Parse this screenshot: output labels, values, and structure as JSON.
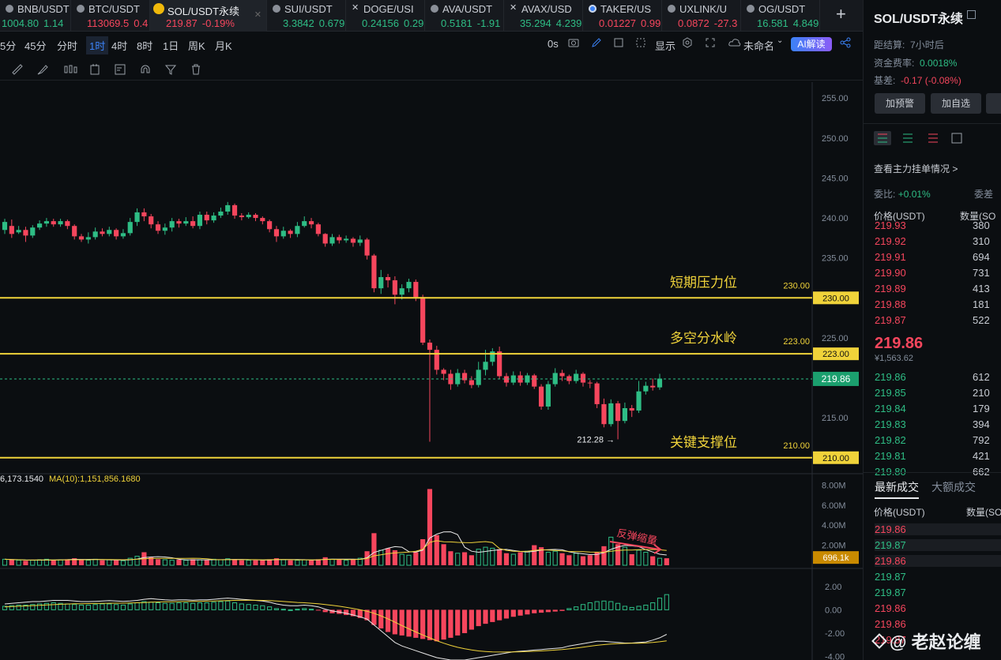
{
  "colors": {
    "up": "#2ebd85",
    "down": "#f6465d",
    "level": "#f0d33a",
    "bg": "#0b0e11",
    "ma": "#f0d33a",
    "ma2": "#e8e8e8",
    "accent": "#3b82f6"
  },
  "tabs": [
    {
      "symbol": "BNB/USDT",
      "price": "1004.80",
      "change": "1.14",
      "dir": "up",
      "icon": "bnb-coin-icon"
    },
    {
      "symbol": "BTC/USDT",
      "price": "113069.5",
      "change": "0.4",
      "dir": "down",
      "icon": "btc-coin-icon"
    },
    {
      "symbol": "SOL/USDT永续",
      "price": "219.87",
      "change": "-0.19%",
      "dir": "down",
      "icon": "binance-logo-icon",
      "active": true
    },
    {
      "symbol": "SUI/USDT",
      "price": "3.3842",
      "change": "0.679",
      "dir": "up",
      "icon": "sui-coin-icon"
    },
    {
      "symbol": "DOGE/USI",
      "price": "0.24156",
      "change": "0.29",
      "dir": "up",
      "icon": "x-icon"
    },
    {
      "symbol": "AVA/USDT",
      "price": "0.5181",
      "change": "-1.91",
      "dir": "up",
      "icon": "ava-coin-icon"
    },
    {
      "symbol": "AVAX/USD",
      "price": "35.294",
      "change": "4.239",
      "dir": "up",
      "icon": "x-icon"
    },
    {
      "symbol": "TAKER/US",
      "price": "0.01227",
      "change": "0.99",
      "dir": "down",
      "icon": "taker-coin-icon"
    },
    {
      "symbol": "UXLINK/U",
      "price": "0.0872",
      "change": "-27.3",
      "dir": "down",
      "icon": "uxlink-coin-icon"
    },
    {
      "symbol": "OG/USDT",
      "price": "16.581",
      "change": "4.849",
      "dir": "up",
      "icon": "og-coin-icon"
    }
  ],
  "timeframes": [
    "5分",
    "45分",
    "分时",
    "1时",
    "4时",
    "8时",
    "1日",
    "周K",
    "月K"
  ],
  "selected_timeframe": "1时",
  "toolbar": {
    "countdown": "0s",
    "display": "显示",
    "layout_name": "未命名",
    "ai_label": "AI解读"
  },
  "chart_data": {
    "type": "candlestick",
    "ylim": [
      208,
      257
    ],
    "yticks": [
      "255.00",
      "250.00",
      "245.00",
      "240.00",
      "235.00",
      "230.00",
      "225.00",
      "220.00",
      "215.00",
      "210.00"
    ],
    "levels": [
      {
        "price": 230,
        "label": "短期压力位",
        "tag": "230.00",
        "value_label": "230.00"
      },
      {
        "price": 223,
        "label": "多空分水岭",
        "tag": "223.00",
        "value_label": "223.00"
      },
      {
        "price": 210,
        "label": "关键支撑位",
        "tag": "210.00",
        "value_label": "210.00"
      }
    ],
    "current_price": "219.86",
    "low_marker": {
      "value": 212.28,
      "label": "212.28 →"
    },
    "candles": [
      [
        238.5,
        239.5,
        238.0,
        239.9
      ],
      [
        239.0,
        238.0,
        237.5,
        239.8
      ],
      [
        238.2,
        238.5,
        238.0,
        239.0
      ],
      [
        238.5,
        237.8,
        237.0,
        238.9
      ],
      [
        237.8,
        238.8,
        237.5,
        239.1
      ],
      [
        238.8,
        239.3,
        238.5,
        239.7
      ],
      [
        239.3,
        239.6,
        238.9,
        240.0
      ],
      [
        239.6,
        239.2,
        238.9,
        239.9
      ],
      [
        239.2,
        239.6,
        238.9,
        239.9
      ],
      [
        239.6,
        239.0,
        238.6,
        239.8
      ],
      [
        239.0,
        237.7,
        237.3,
        239.2
      ],
      [
        237.7,
        237.3,
        237.0,
        238.0
      ],
      [
        237.3,
        237.6,
        236.8,
        238.2
      ],
      [
        237.6,
        238.3,
        237.3,
        238.8
      ],
      [
        238.3,
        238.0,
        237.7,
        238.7
      ],
      [
        238.0,
        238.5,
        237.7,
        238.9
      ],
      [
        238.5,
        237.7,
        237.3,
        238.7
      ],
      [
        237.7,
        238.1,
        237.4,
        238.6
      ],
      [
        238.1,
        239.5,
        237.8,
        240.0
      ],
      [
        239.5,
        240.7,
        239.0,
        241.2
      ],
      [
        240.7,
        240.2,
        239.6,
        241.2
      ],
      [
        240.2,
        239.2,
        238.7,
        240.5
      ],
      [
        239.2,
        238.4,
        238.0,
        239.6
      ],
      [
        238.4,
        238.8,
        237.9,
        239.3
      ],
      [
        238.8,
        239.6,
        238.3,
        240.0
      ],
      [
        239.6,
        239.3,
        238.8,
        239.9
      ],
      [
        239.3,
        239.6,
        239.0,
        240.1
      ],
      [
        239.6,
        239.0,
        238.7,
        240.2
      ],
      [
        239.0,
        240.4,
        238.6,
        240.8
      ],
      [
        240.4,
        239.7,
        239.2,
        240.8
      ],
      [
        239.7,
        240.3,
        239.4,
        240.7
      ],
      [
        240.3,
        240.8,
        240.0,
        241.3
      ],
      [
        240.8,
        241.6,
        240.4,
        242.0
      ],
      [
        241.6,
        240.3,
        239.9,
        241.8
      ],
      [
        240.3,
        240.1,
        239.7,
        240.6
      ],
      [
        240.1,
        240.4,
        239.9,
        240.7
      ],
      [
        240.4,
        240.0,
        239.6,
        240.6
      ],
      [
        240.0,
        239.6,
        239.2,
        240.2
      ],
      [
        239.6,
        238.6,
        238.2,
        239.8
      ],
      [
        238.6,
        237.7,
        237.0,
        239.0
      ],
      [
        237.7,
        238.4,
        237.4,
        238.9
      ],
      [
        238.4,
        238.0,
        237.5,
        238.6
      ],
      [
        238.0,
        239.0,
        237.6,
        239.5
      ],
      [
        239.0,
        239.6,
        238.8,
        240.2
      ],
      [
        239.6,
        239.2,
        238.7,
        240.0
      ],
      [
        239.2,
        238.0,
        237.7,
        239.4
      ],
      [
        238.0,
        236.8,
        236.4,
        238.1
      ],
      [
        236.8,
        237.6,
        236.5,
        238.0
      ],
      [
        237.6,
        237.2,
        236.8,
        237.9
      ],
      [
        237.2,
        237.4,
        236.9,
        237.8
      ],
      [
        237.4,
        236.9,
        236.4,
        237.6
      ],
      [
        236.9,
        237.3,
        236.5,
        237.8
      ],
      [
        237.3,
        235.3,
        234.8,
        237.5
      ],
      [
        235.3,
        231.2,
        230.7,
        235.5
      ],
      [
        231.2,
        232.6,
        230.5,
        233.5
      ],
      [
        232.6,
        232.2,
        231.3,
        233.0
      ],
      [
        232.2,
        230.4,
        229.2,
        232.7
      ],
      [
        230.4,
        231.2,
        229.8,
        231.7
      ],
      [
        231.2,
        232.0,
        230.7,
        232.4
      ],
      [
        232.0,
        230.1,
        229.6,
        232.3
      ],
      [
        230.1,
        224.4,
        224.1,
        230.4
      ],
      [
        224.4,
        223.5,
        212.0,
        224.8
      ],
      [
        223.5,
        221.0,
        220.4,
        224.0
      ],
      [
        221.0,
        220.5,
        219.7,
        221.2
      ],
      [
        220.5,
        219.2,
        218.5,
        221.0
      ],
      [
        219.2,
        220.6,
        218.9,
        221.1
      ],
      [
        220.6,
        219.7,
        219.3,
        221.0
      ],
      [
        219.7,
        219.1,
        218.7,
        220.2
      ],
      [
        219.1,
        221.0,
        218.8,
        222.0
      ],
      [
        221.0,
        222.0,
        220.3,
        223.5
      ],
      [
        222.0,
        223.3,
        221.5,
        223.7
      ],
      [
        223.3,
        220.2,
        219.8,
        223.9
      ],
      [
        220.2,
        219.4,
        218.9,
        220.6
      ],
      [
        219.4,
        220.3,
        219.1,
        220.8
      ],
      [
        220.3,
        219.4,
        219.0,
        220.8
      ],
      [
        219.4,
        220.3,
        219.1,
        220.6
      ],
      [
        220.3,
        218.9,
        218.6,
        220.5
      ],
      [
        218.9,
        216.4,
        216.0,
        219.2
      ],
      [
        216.4,
        219.2,
        216.0,
        219.6
      ],
      [
        219.2,
        220.6,
        218.9,
        221.2
      ],
      [
        220.6,
        220.2,
        219.6,
        221.0
      ],
      [
        220.2,
        219.6,
        219.2,
        220.4
      ],
      [
        219.6,
        220.5,
        219.3,
        221.0
      ],
      [
        220.5,
        219.4,
        218.9,
        220.7
      ],
      [
        219.4,
        219.3,
        218.7,
        219.7
      ],
      [
        219.3,
        216.7,
        216.2,
        219.5
      ],
      [
        216.7,
        214.2,
        213.8,
        217.4
      ],
      [
        214.2,
        216.8,
        213.9,
        217.3
      ],
      [
        216.8,
        214.6,
        212.3,
        217.1
      ],
      [
        214.6,
        216.2,
        214.3,
        216.9
      ],
      [
        216.2,
        215.9,
        215.1,
        216.6
      ],
      [
        215.9,
        218.3,
        215.6,
        219.6
      ],
      [
        218.3,
        219.0,
        217.9,
        219.5
      ],
      [
        219.0,
        218.8,
        218.4,
        219.9
      ],
      [
        218.8,
        219.9,
        218.5,
        220.5
      ]
    ],
    "volume": {
      "ylim": [
        0,
        8.5
      ],
      "yticks": [
        "8.00M",
        "6.00M",
        "4.00M",
        "2.00M"
      ],
      "current_tag": "696.1k",
      "ma5_label": "6,173.1540",
      "ma10_label": "MA(10):1,151,856.1680",
      "annotation": "反弹缩量",
      "values": [
        0.6,
        0.55,
        0.5,
        0.45,
        0.5,
        0.55,
        0.6,
        0.5,
        0.55,
        0.6,
        0.7,
        0.55,
        0.5,
        0.6,
        0.5,
        0.55,
        0.5,
        0.45,
        0.7,
        0.9,
        1.3,
        0.8,
        0.6,
        0.55,
        0.5,
        0.55,
        0.5,
        0.6,
        0.55,
        0.5,
        0.6,
        0.55,
        0.65,
        0.6,
        0.5,
        0.5,
        0.5,
        0.5,
        0.6,
        0.7,
        0.55,
        0.5,
        0.5,
        0.55,
        0.5,
        0.6,
        0.8,
        0.6,
        0.55,
        0.5,
        0.6,
        0.7,
        1.4,
        3.2,
        1.5,
        1.7,
        1.5,
        1.1,
        1.0,
        1.3,
        2.6,
        7.6,
        3.0,
        2.1,
        1.4,
        1.2,
        1.3,
        1.0,
        1.6,
        1.8,
        1.7,
        1.6,
        1.2,
        1.1,
        1.3,
        1.4,
        2.0,
        1.8,
        1.3,
        1.4,
        1.2,
        1.0,
        1.2,
        0.9,
        1.0,
        1.3,
        1.9,
        2.8,
        2.1,
        1.8,
        1.1,
        1.5,
        1.3,
        0.9,
        0.7,
        0.7
      ]
    },
    "macd": {
      "ylim": [
        -4.3,
        3.0
      ],
      "yticks": [
        "2.00",
        "0.00",
        "-2.00",
        "-4.00"
      ],
      "hist": [
        0.3,
        0.35,
        0.4,
        0.4,
        0.45,
        0.5,
        0.55,
        0.6,
        0.55,
        0.5,
        0.45,
        0.4,
        0.4,
        0.45,
        0.5,
        0.5,
        0.45,
        0.4,
        0.5,
        0.6,
        0.7,
        0.65,
        0.6,
        0.55,
        0.55,
        0.6,
        0.6,
        0.55,
        0.6,
        0.6,
        0.65,
        0.7,
        0.75,
        0.6,
        0.5,
        0.45,
        0.4,
        0.35,
        0.25,
        0.1,
        0.05,
        0.0,
        0.05,
        0.1,
        0.05,
        -0.05,
        -0.2,
        -0.3,
        -0.35,
        -0.45,
        -0.55,
        -0.7,
        -0.9,
        -1.3,
        -1.6,
        -1.9,
        -2.1,
        -2.2,
        -2.3,
        -2.4,
        -2.5,
        -2.6,
        -2.7,
        -2.55,
        -2.4,
        -2.2,
        -2.0,
        -1.7,
        -1.4,
        -1.2,
        -1.05,
        -0.9,
        -0.75,
        -0.6,
        -0.5,
        -0.4,
        -0.3,
        -0.25,
        -0.2,
        -0.15,
        -0.1,
        0.1,
        0.25,
        0.45,
        0.6,
        0.7,
        0.75,
        0.7,
        0.55,
        0.3,
        0.2,
        0.3,
        0.4,
        0.6,
        1.0,
        1.3
      ],
      "dif": [
        0.5,
        0.55,
        0.6,
        0.65,
        0.7,
        0.7,
        0.75,
        0.8,
        0.8,
        0.8,
        0.75,
        0.7,
        0.7,
        0.72,
        0.75,
        0.78,
        0.75,
        0.72,
        0.75,
        0.8,
        0.9,
        0.95,
        0.9,
        0.85,
        0.82,
        0.85,
        0.85,
        0.82,
        0.85,
        0.85,
        0.9,
        0.95,
        1.0,
        0.95,
        0.9,
        0.85,
        0.8,
        0.75,
        0.65,
        0.5,
        0.4,
        0.35,
        0.35,
        0.4,
        0.35,
        0.25,
        0.05,
        -0.1,
        -0.2,
        -0.3,
        -0.45,
        -0.6,
        -0.8,
        -1.3,
        -1.8,
        -2.3,
        -2.8,
        -3.1,
        -3.3,
        -3.5,
        -3.7,
        -3.9,
        -4.1,
        -4.2,
        -4.3,
        -4.3,
        -4.3,
        -4.2,
        -4.1,
        -4.0,
        -3.9,
        -3.8,
        -3.7,
        -3.6,
        -3.55,
        -3.5,
        -3.45,
        -3.4,
        -3.35,
        -3.3,
        -3.25,
        -3.1,
        -3.0,
        -2.9,
        -2.8,
        -2.7,
        -2.7,
        -2.75,
        -2.8,
        -2.85,
        -2.85,
        -2.8,
        -2.75,
        -2.6,
        -2.4,
        -2.1
      ],
      "dea": [
        0.25,
        0.28,
        0.3,
        0.33,
        0.36,
        0.38,
        0.41,
        0.44,
        0.47,
        0.49,
        0.51,
        0.52,
        0.53,
        0.54,
        0.55,
        0.56,
        0.57,
        0.57,
        0.58,
        0.6,
        0.62,
        0.65,
        0.67,
        0.68,
        0.69,
        0.7,
        0.71,
        0.72,
        0.73,
        0.74,
        0.75,
        0.77,
        0.79,
        0.8,
        0.81,
        0.81,
        0.81,
        0.8,
        0.78,
        0.75,
        0.71,
        0.67,
        0.63,
        0.6,
        0.56,
        0.51,
        0.45,
        0.38,
        0.3,
        0.21,
        0.11,
        0.0,
        -0.12,
        -0.3,
        -0.52,
        -0.78,
        -1.06,
        -1.35,
        -1.63,
        -1.9,
        -2.16,
        -2.41,
        -2.65,
        -2.86,
        -3.05,
        -3.21,
        -3.34,
        -3.44,
        -3.52,
        -3.57,
        -3.61,
        -3.62,
        -3.62,
        -3.61,
        -3.6,
        -3.58,
        -3.55,
        -3.52,
        -3.49,
        -3.45,
        -3.41,
        -3.35,
        -3.28,
        -3.2,
        -3.12,
        -3.04,
        -2.98,
        -2.93,
        -2.9,
        -2.88,
        -2.87,
        -2.86,
        -2.84,
        -2.8,
        -2.74,
        -2.66
      ]
    }
  },
  "sidebar": {
    "title": "SOL/USDT永续",
    "settle_label": "距结算:",
    "settle_value": "7小时后",
    "funding_label": "资金费率:",
    "funding_value": "0.0018%",
    "basis_label": "基差:",
    "basis_value": "-0.17 (-0.08%)",
    "btn_alert": "加预警",
    "btn_watch": "加自选",
    "depth_link": "查看主力挂单情况 >",
    "ratio_label": "委比:",
    "ratio_value": "+0.01%",
    "ratio_label2": "委差",
    "ob_header_price": "价格(USDT)",
    "ob_header_qty": "数量(SO",
    "asks": [
      [
        "219.93",
        "380"
      ],
      [
        "219.92",
        "310"
      ],
      [
        "219.91",
        "694"
      ],
      [
        "219.90",
        "731"
      ],
      [
        "219.89",
        "413"
      ],
      [
        "219.88",
        "181"
      ],
      [
        "219.87",
        "522"
      ]
    ],
    "last_price": "219.86",
    "last_sub": "¥1,563.62",
    "bids": [
      [
        "219.86",
        "612"
      ],
      [
        "219.85",
        "210"
      ],
      [
        "219.84",
        "179"
      ],
      [
        "219.83",
        "394"
      ],
      [
        "219.82",
        "792"
      ],
      [
        "219.81",
        "421"
      ],
      [
        "219.80",
        "662"
      ]
    ],
    "trades_tab1": "最新成交",
    "trades_tab2": "大额成交",
    "tr_header_price": "价格(USDT)",
    "tr_header_qty": "数量(SO",
    "trades": [
      [
        "219.86",
        "down"
      ],
      [
        "219.87",
        "up"
      ],
      [
        "219.86",
        "down"
      ],
      [
        "219.87",
        "up"
      ],
      [
        "219.87",
        "up"
      ],
      [
        "219.86",
        "down"
      ],
      [
        "219.86",
        "down"
      ],
      [
        "219.87",
        "down"
      ]
    ],
    "watermark": "@ 老赵论缠"
  }
}
